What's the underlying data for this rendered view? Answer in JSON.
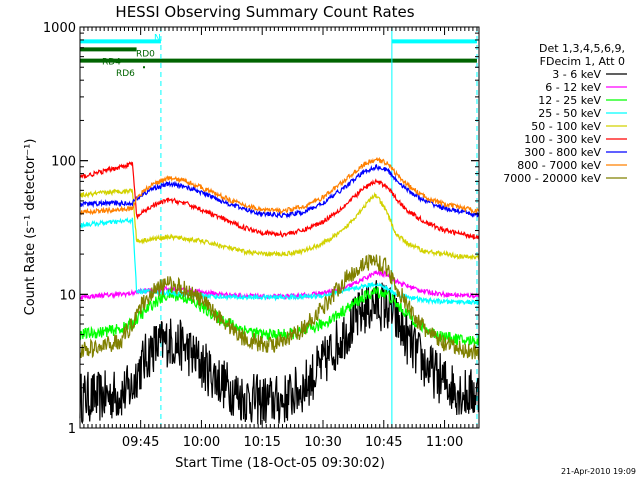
{
  "chart_data": {
    "type": "line",
    "title": "HESSI Observing Summary Count Rates",
    "xlabel": "Start Time (18-Oct-05 09:30:02)",
    "ylabel": "Count Rate (s⁻¹ detector⁻¹)",
    "yscale": "log",
    "ylim": [
      1,
      1000
    ],
    "xlim": [
      "09:30:02",
      "11:08:30"
    ],
    "x_ticks": [
      "09:45",
      "10:00",
      "10:15",
      "10:30",
      "10:45",
      "11:00"
    ],
    "y_ticks": [
      "1",
      "10",
      "100",
      "1000"
    ],
    "legend": {
      "placement": "right",
      "header": [
        "Det 1,3,4,5,6,9,",
        "FDecim 1, Att 0"
      ],
      "entries": [
        "3 - 6 keV",
        "6 - 12 keV",
        "12 - 25 keV",
        "25 - 50 keV",
        "50 - 100 keV",
        "100 - 300 keV",
        "300 - 800 keV",
        "800 - 7000 keV",
        "7000 - 20000 keV"
      ]
    },
    "time_points": [
      "09:30",
      "09:35",
      "09:40",
      "09:43",
      "09:44",
      "09:48",
      "09:52",
      "09:56",
      "10:00",
      "10:05",
      "10:10",
      "10:15",
      "10:20",
      "10:25",
      "10:30",
      "10:35",
      "10:40",
      "10:43",
      "10:46",
      "10:48",
      "10:51",
      "10:55",
      "11:00",
      "11:05",
      "11:08"
    ],
    "series": [
      {
        "name": "3 - 6 keV",
        "color": "#000000",
        "noise": 0.45,
        "values": [
          1.7,
          1.7,
          1.8,
          2.0,
          2.6,
          4.0,
          4.5,
          4.0,
          3.0,
          2.2,
          1.7,
          1.6,
          1.6,
          2.0,
          3.0,
          5.0,
          7.5,
          8.5,
          8.0,
          6.5,
          4.5,
          3.0,
          2.2,
          1.8,
          1.8
        ]
      },
      {
        "name": "6 - 12 keV",
        "color": "#ff00ff",
        "values": [
          9.5,
          9.8,
          10.0,
          10.2,
          10.4,
          10.8,
          11.0,
          10.8,
          10.4,
          10.0,
          9.8,
          9.6,
          9.6,
          9.8,
          10.2,
          11.0,
          13.0,
          14.5,
          14.0,
          12.5,
          11.5,
          10.5,
          10.0,
          9.8,
          9.8
        ]
      },
      {
        "name": "12 - 25 keV",
        "color": "#00ff00",
        "noise": 0.1,
        "values": [
          5.0,
          5.2,
          5.5,
          6.0,
          6.5,
          8.5,
          10.0,
          9.5,
          8.0,
          6.5,
          5.5,
          5.0,
          5.0,
          5.2,
          6.0,
          7.5,
          9.5,
          10.5,
          10.0,
          8.5,
          7.0,
          5.5,
          4.8,
          4.5,
          4.5
        ]
      },
      {
        "name": "25 - 50 keV",
        "color": "#00ffff",
        "values": [
          33,
          34,
          35,
          36,
          10.5,
          10.5,
          10.2,
          10.0,
          9.8,
          9.6,
          9.5,
          9.5,
          9.5,
          9.6,
          9.8,
          10.5,
          11.5,
          12.0,
          11.0,
          10.0,
          9.6,
          9.0,
          8.8,
          8.8,
          8.6
        ]
      },
      {
        "name": "50 - 100 keV",
        "color": "#d2d200",
        "values": [
          55,
          57,
          59,
          60,
          25,
          26,
          27,
          26,
          25,
          23,
          21,
          20,
          20,
          21,
          24,
          30,
          45,
          56,
          40,
          28,
          24,
          21,
          20,
          19,
          19
        ]
      },
      {
        "name": "100 - 300 keV",
        "color": "#ff0000",
        "values": [
          75,
          82,
          90,
          95,
          38,
          46,
          51,
          48,
          43,
          37,
          32,
          29,
          28,
          30,
          35,
          45,
          62,
          70,
          64,
          52,
          42,
          35,
          30,
          28,
          27
        ]
      },
      {
        "name": "300 - 800 keV",
        "color": "#0000ff",
        "values": [
          47,
          48,
          48,
          48,
          52,
          62,
          67,
          64,
          58,
          50,
          44,
          40,
          39,
          41,
          48,
          62,
          82,
          90,
          85,
          72,
          60,
          50,
          44,
          41,
          39
        ]
      },
      {
        "name": "800 - 7000 keV",
        "color": "#ff8000",
        "values": [
          41,
          42,
          43,
          44,
          53,
          67,
          74,
          71,
          63,
          54,
          47,
          43,
          42,
          45,
          53,
          70,
          93,
          102,
          96,
          80,
          65,
          54,
          47,
          44,
          42
        ]
      },
      {
        "name": "7000 - 20000 keV",
        "color": "#808000",
        "noise": 0.15,
        "values": [
          3.8,
          4.0,
          4.5,
          6.0,
          7.5,
          10.5,
          12.0,
          11.0,
          9.0,
          6.5,
          4.8,
          4.2,
          4.3,
          5.5,
          8.0,
          12.5,
          17.0,
          18.0,
          15.5,
          11.5,
          8.0,
          5.5,
          4.2,
          3.8,
          3.7
        ]
      }
    ],
    "vertical_lines": [
      {
        "time": "09:50",
        "style": "dashed",
        "color": "#00ffff"
      },
      {
        "time": "10:47",
        "style": "solid",
        "color": "#00ffff"
      },
      {
        "time": "11:08",
        "style": "dashed",
        "color": "#00ffff"
      }
    ],
    "flag_bars": [
      {
        "label": "N",
        "color": "#00ffff",
        "spans": [
          [
            "09:30",
            "09:50"
          ],
          [
            "10:47",
            "11:08"
          ]
        ],
        "value": 780
      },
      {
        "label": "RD0",
        "color": "#006400",
        "spans": [
          [
            "09:30",
            "09:44"
          ]
        ],
        "value": 680
      },
      {
        "label": "RD4",
        "color": "#006400",
        "spans": [
          [
            "09:30",
            "11:08"
          ]
        ],
        "value": 560
      },
      {
        "label": "RD6",
        "color": "#006400",
        "spans": [],
        "value": 500
      }
    ]
  },
  "footer": {
    "date": "21-Apr-2010 19:09"
  }
}
